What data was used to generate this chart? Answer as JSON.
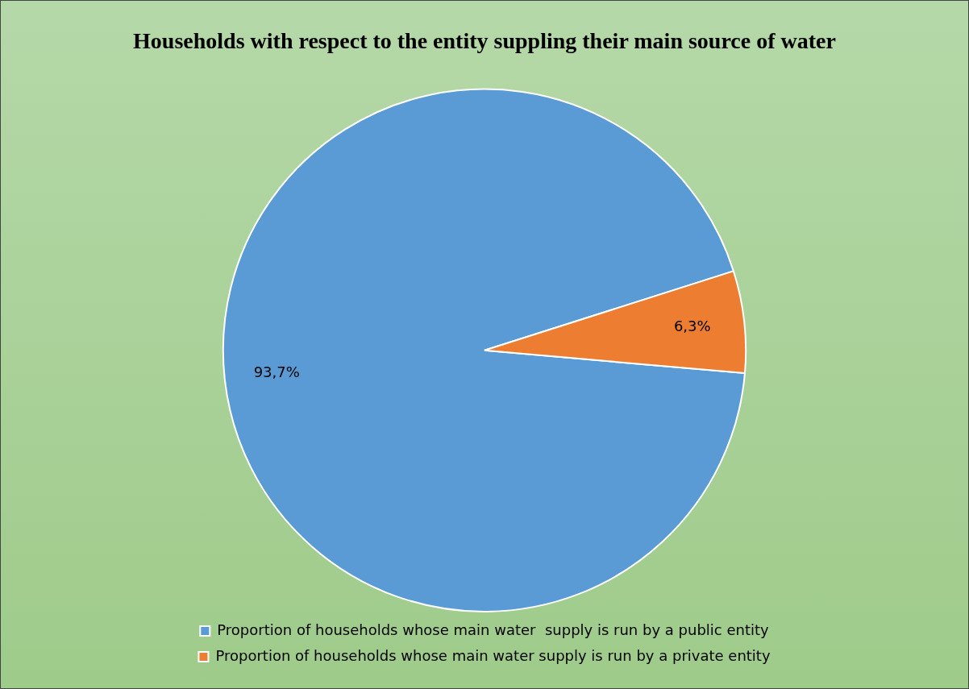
{
  "chart_data": {
    "type": "pie",
    "title": "Households with respect to the entity suppling their main source of water",
    "categories": [
      "Proportion of households whose main water  supply is run by a public entity",
      "Proportion of households whose main water supply is run by a private entity"
    ],
    "values": [
      93.7,
      6.3
    ],
    "colors": [
      "#5b9bd5",
      "#ed7d31"
    ],
    "value_labels": [
      "93,7%",
      "6,3%"
    ],
    "legend": "bottom"
  }
}
